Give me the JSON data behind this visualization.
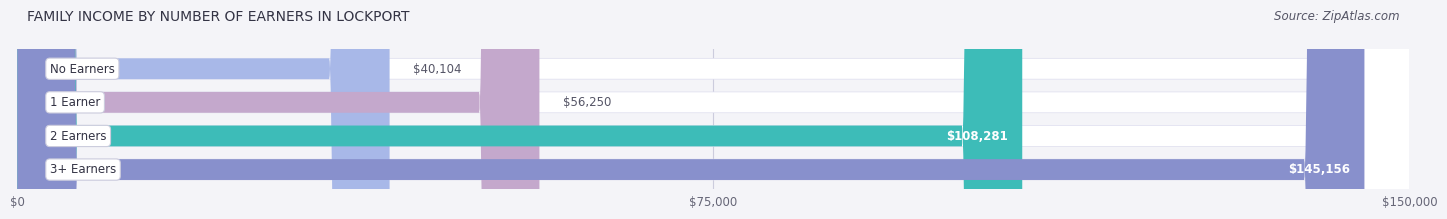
{
  "title": "FAMILY INCOME BY NUMBER OF EARNERS IN LOCKPORT",
  "source": "Source: ZipAtlas.com",
  "categories": [
    "No Earners",
    "1 Earner",
    "2 Earners",
    "3+ Earners"
  ],
  "values": [
    40104,
    56250,
    108281,
    145156
  ],
  "bar_colors": [
    "#a8b8e8",
    "#c4a8cc",
    "#3dbcb8",
    "#8890cc"
  ],
  "label_colors": [
    "#555555",
    "#555555",
    "#ffffff",
    "#ffffff"
  ],
  "value_labels": [
    "$40,104",
    "$56,250",
    "$108,281",
    "$145,156"
  ],
  "xlim": [
    0,
    150000
  ],
  "xticks": [
    0,
    75000,
    150000
  ],
  "xtick_labels": [
    "$0",
    "$75,000",
    "$150,000"
  ],
  "bg_color": "#ffffff",
  "fig_bg_color": "#f4f4f8",
  "title_fontsize": 10,
  "source_fontsize": 8.5,
  "value_label_fontsize": 8.5,
  "cat_label_fontsize": 8.5,
  "bar_bg_color": "#e8e8f0"
}
